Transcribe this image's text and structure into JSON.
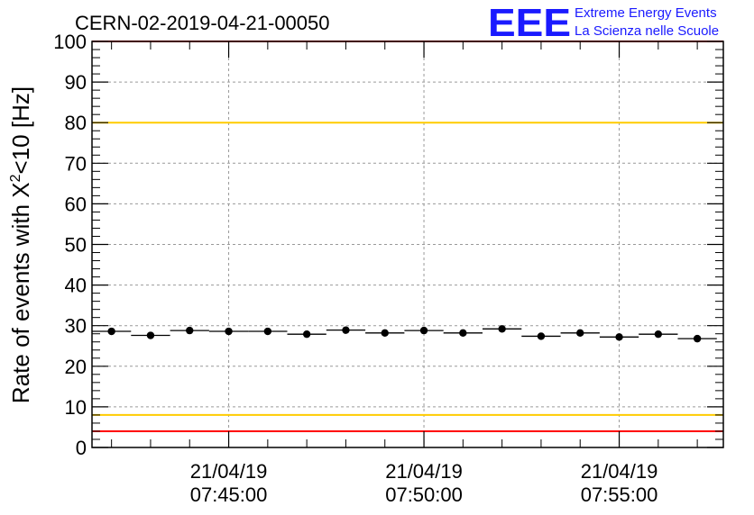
{
  "title": "CERN-02-2019-04-21-00050",
  "logo": {
    "mark": "EEE",
    "line1": "Extreme Energy Events",
    "line2": "La Scienza nelle Scuole",
    "color": "#1a1aff"
  },
  "chart_data": {
    "type": "scatter",
    "title": "CERN-02-2019-04-21-00050",
    "ylabel_base": "Rate of events with X",
    "ylabel_sup": "2",
    "ylabel_tail": "<10 [Hz]",
    "ylim": [
      0,
      100
    ],
    "yticks": [
      0,
      10,
      20,
      30,
      40,
      50,
      60,
      70,
      80,
      90,
      100
    ],
    "xlim": [
      "21/04/19 07:41:30",
      "21/04/19 07:57:40"
    ],
    "xticks": [
      {
        "date": "21/04/19",
        "time": "07:45:00"
      },
      {
        "date": "21/04/19",
        "time": "07:50:00"
      },
      {
        "date": "21/04/19",
        "time": "07:55:00"
      }
    ],
    "grid": true,
    "bin_minutes": 1,
    "points": [
      {
        "time": "07:42:00",
        "rate": 28.6
      },
      {
        "time": "07:43:00",
        "rate": 27.6
      },
      {
        "time": "07:44:00",
        "rate": 28.8
      },
      {
        "time": "07:45:00",
        "rate": 28.6
      },
      {
        "time": "07:46:00",
        "rate": 28.6
      },
      {
        "time": "07:47:00",
        "rate": 27.9
      },
      {
        "time": "07:48:00",
        "rate": 28.9
      },
      {
        "time": "07:49:00",
        "rate": 28.2
      },
      {
        "time": "07:50:00",
        "rate": 28.8
      },
      {
        "time": "07:51:00",
        "rate": 28.2
      },
      {
        "time": "07:52:00",
        "rate": 29.2
      },
      {
        "time": "07:53:00",
        "rate": 27.4
      },
      {
        "time": "07:54:00",
        "rate": 28.2
      },
      {
        "time": "07:55:00",
        "rate": 27.2
      },
      {
        "time": "07:56:00",
        "rate": 27.9
      },
      {
        "time": "07:57:00",
        "rate": 26.8
      }
    ],
    "reference_lines": [
      {
        "value": 100,
        "color": "#ff0000"
      },
      {
        "value": 80,
        "color": "#ffcc00"
      },
      {
        "value": 8,
        "color": "#ffcc00"
      },
      {
        "value": 4,
        "color": "#ff0000"
      }
    ]
  }
}
